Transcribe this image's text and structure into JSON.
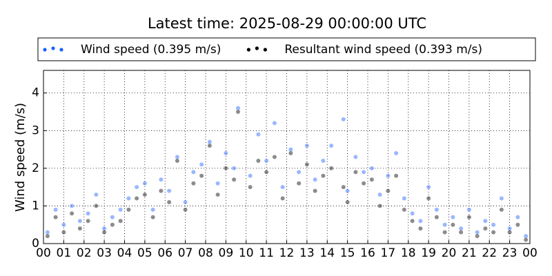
{
  "chart_data": {
    "type": "scatter",
    "title": "Latest time: 2025-08-29 00:00:00 UTC",
    "y_label": "Wind speed (m/s)",
    "x": [
      0.2,
      0.6,
      1.0,
      1.4,
      1.8,
      2.2,
      2.6,
      3.0,
      3.4,
      3.8,
      4.2,
      4.6,
      5.0,
      5.4,
      5.8,
      6.2,
      6.6,
      7.0,
      7.4,
      7.8,
      8.2,
      8.6,
      9.0,
      9.4,
      9.6,
      10.2,
      10.6,
      11.0,
      11.4,
      11.8,
      12.2,
      12.6,
      13.0,
      13.4,
      13.8,
      14.2,
      14.8,
      15.0,
      15.4,
      15.8,
      16.2,
      16.6,
      17.0,
      17.4,
      17.8,
      18.2,
      18.6,
      19.0,
      19.4,
      19.8,
      20.2,
      20.6,
      21.0,
      21.4,
      21.8,
      22.2,
      22.6,
      23.0,
      23.4,
      23.8
    ],
    "series": [
      {
        "name": "Wind speed (0.395 m/s)",
        "color": "#1f5fff",
        "values": [
          0.3,
          0.9,
          0.5,
          1.0,
          0.6,
          0.8,
          1.3,
          0.4,
          0.7,
          0.9,
          1.2,
          1.5,
          1.6,
          0.9,
          1.7,
          1.4,
          2.3,
          1.1,
          1.9,
          2.1,
          2.7,
          1.6,
          2.4,
          2.0,
          3.6,
          1.8,
          2.9,
          2.2,
          3.2,
          1.5,
          2.5,
          1.9,
          2.6,
          1.7,
          2.2,
          2.6,
          3.3,
          1.4,
          2.3,
          1.9,
          2.0,
          1.3,
          1.8,
          2.4,
          1.2,
          0.8,
          0.6,
          1.5,
          0.9,
          0.5,
          0.7,
          0.4,
          0.9,
          0.3,
          0.6,
          0.5,
          1.2,
          0.4,
          0.7,
          0.2
        ]
      },
      {
        "name": "Resultant wind speed (0.393 m/s)",
        "color": "#000000",
        "values": [
          0.2,
          0.7,
          0.3,
          0.8,
          0.4,
          0.6,
          1.0,
          0.3,
          0.5,
          0.6,
          0.9,
          1.2,
          1.3,
          0.7,
          1.4,
          1.1,
          2.2,
          0.9,
          1.6,
          1.8,
          2.6,
          1.3,
          2.0,
          1.7,
          3.5,
          1.5,
          2.2,
          1.9,
          2.3,
          1.2,
          2.4,
          1.6,
          2.1,
          1.4,
          1.8,
          2.0,
          1.5,
          1.1,
          1.9,
          1.6,
          1.7,
          1.0,
          1.4,
          1.8,
          0.9,
          0.6,
          0.4,
          1.2,
          0.7,
          0.3,
          0.5,
          0.3,
          0.7,
          0.2,
          0.4,
          0.3,
          0.9,
          0.3,
          0.5,
          0.1
        ]
      }
    ],
    "xlim": [
      0,
      24
    ],
    "xticks": [
      {
        "value": 0,
        "label": "00"
      },
      {
        "value": 1,
        "label": "01"
      },
      {
        "value": 2,
        "label": "02"
      },
      {
        "value": 3,
        "label": "03"
      },
      {
        "value": 4,
        "label": "04"
      },
      {
        "value": 5,
        "label": "05"
      },
      {
        "value": 6,
        "label": "06"
      },
      {
        "value": 7,
        "label": "07"
      },
      {
        "value": 8,
        "label": "08"
      },
      {
        "value": 9,
        "label": "09"
      },
      {
        "value": 10,
        "label": "10"
      },
      {
        "value": 11,
        "label": "11"
      },
      {
        "value": 12,
        "label": "12"
      },
      {
        "value": 13,
        "label": "13"
      },
      {
        "value": 14,
        "label": "14"
      },
      {
        "value": 15,
        "label": "15"
      },
      {
        "value": 16,
        "label": "16"
      },
      {
        "value": 17,
        "label": "17"
      },
      {
        "value": 18,
        "label": "18"
      },
      {
        "value": 19,
        "label": "19"
      },
      {
        "value": 20,
        "label": "20"
      },
      {
        "value": 21,
        "label": "21"
      },
      {
        "value": 22,
        "label": "22"
      },
      {
        "value": 23,
        "label": "23"
      },
      {
        "value": 24,
        "label": "00"
      }
    ],
    "ylim": [
      0,
      4.6
    ],
    "yticks": [
      0,
      1,
      2,
      3,
      4
    ],
    "grid": true
  }
}
